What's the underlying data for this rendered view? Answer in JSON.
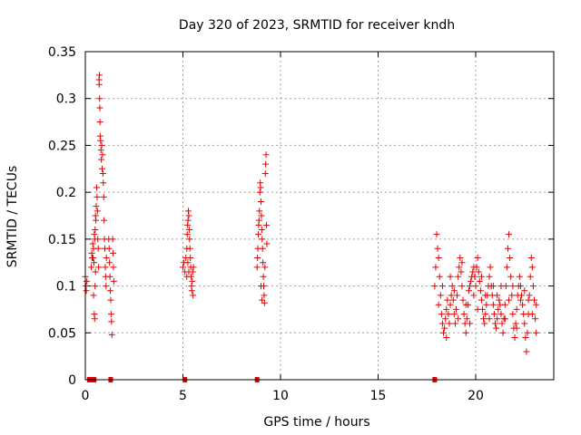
{
  "colors": {
    "series": "#e60000",
    "axis": "#000000",
    "grid": "#a0a0a0",
    "background": "#ffffff"
  },
  "chart_data": {
    "type": "scatter",
    "title": "Day 320 of 2023, SRMTID for receiver kndh",
    "xlabel": "GPS time / hours",
    "ylabel": "SRMTID / TECUs",
    "xlim": [
      0,
      24
    ],
    "ylim": [
      0,
      0.35
    ],
    "grid": true,
    "marker": "plus",
    "xticks": [
      0,
      5,
      10,
      15,
      20
    ],
    "xtick_labels": [
      "0",
      "5",
      "10",
      "15",
      "20"
    ],
    "yticks": [
      0,
      0.05,
      0.1,
      0.15,
      0.2,
      0.25,
      0.3,
      0.35
    ],
    "ytick_labels": [
      "0",
      "0.05",
      "0.1",
      "0.15",
      "0.2",
      "0.25",
      "0.3",
      "0.35"
    ],
    "series": [
      {
        "name": "SRMTID",
        "points": [
          [
            0.0,
            0.11
          ],
          [
            0.03,
            0.1
          ],
          [
            0.05,
            0.095
          ],
          [
            0.08,
            0.105
          ],
          [
            0.3,
            0.12
          ],
          [
            0.33,
            0.135
          ],
          [
            0.35,
            0.13
          ],
          [
            0.38,
            0.145
          ],
          [
            0.4,
            0.13
          ],
          [
            0.42,
            0.14
          ],
          [
            0.44,
            0.125
          ],
          [
            0.46,
            0.155
          ],
          [
            0.48,
            0.15
          ],
          [
            0.5,
            0.16
          ],
          [
            0.52,
            0.175
          ],
          [
            0.54,
            0.17
          ],
          [
            0.56,
            0.185
          ],
          [
            0.58,
            0.205
          ],
          [
            0.6,
            0.195
          ],
          [
            0.62,
            0.18
          ],
          [
            0.64,
            0.15
          ],
          [
            0.66,
            0.14
          ],
          [
            0.68,
            0.12
          ],
          [
            0.42,
            0.09
          ],
          [
            0.46,
            0.07
          ],
          [
            0.48,
            0.065
          ],
          [
            0.5,
            0.1
          ],
          [
            0.52,
            0.115
          ],
          [
            0.7,
            0.32
          ],
          [
            0.71,
            0.315
          ],
          [
            0.72,
            0.325
          ],
          [
            0.73,
            0.3
          ],
          [
            0.74,
            0.29
          ],
          [
            0.75,
            0.275
          ],
          [
            0.76,
            0.26
          ],
          [
            0.78,
            0.255
          ],
          [
            0.8,
            0.245
          ],
          [
            0.82,
            0.235
          ],
          [
            0.84,
            0.25
          ],
          [
            0.86,
            0.225
          ],
          [
            0.88,
            0.24
          ],
          [
            0.9,
            0.22
          ],
          [
            0.92,
            0.21
          ],
          [
            0.94,
            0.195
          ],
          [
            0.96,
            0.17
          ],
          [
            0.98,
            0.15
          ],
          [
            1.0,
            0.14
          ],
          [
            1.02,
            0.12
          ],
          [
            1.04,
            0.11
          ],
          [
            1.06,
            0.1
          ],
          [
            1.08,
            0.13
          ],
          [
            1.2,
            0.15
          ],
          [
            1.22,
            0.14
          ],
          [
            1.24,
            0.125
          ],
          [
            1.26,
            0.11
          ],
          [
            1.28,
            0.095
          ],
          [
            1.3,
            0.085
          ],
          [
            1.32,
            0.07
          ],
          [
            1.34,
            0.062
          ],
          [
            1.36,
            0.048
          ],
          [
            1.4,
            0.15
          ],
          [
            1.42,
            0.135
          ],
          [
            1.44,
            0.12
          ],
          [
            1.46,
            0.105
          ],
          [
            5.0,
            0.12
          ],
          [
            5.05,
            0.125
          ],
          [
            5.1,
            0.115
          ],
          [
            5.15,
            0.13
          ],
          [
            5.2,
            0.14
          ],
          [
            5.22,
            0.155
          ],
          [
            5.24,
            0.165
          ],
          [
            5.26,
            0.17
          ],
          [
            5.28,
            0.18
          ],
          [
            5.3,
            0.175
          ],
          [
            5.32,
            0.16
          ],
          [
            5.34,
            0.15
          ],
          [
            5.36,
            0.14
          ],
          [
            5.38,
            0.13
          ],
          [
            5.4,
            0.12
          ],
          [
            5.42,
            0.11
          ],
          [
            5.44,
            0.1
          ],
          [
            5.46,
            0.095
          ],
          [
            5.48,
            0.105
          ],
          [
            5.5,
            0.115
          ],
          [
            5.52,
            0.09
          ],
          [
            5.54,
            0.12
          ],
          [
            5.2,
            0.11
          ],
          [
            5.25,
            0.125
          ],
          [
            5.3,
            0.115
          ],
          [
            8.8,
            0.12
          ],
          [
            8.82,
            0.13
          ],
          [
            8.84,
            0.14
          ],
          [
            8.86,
            0.155
          ],
          [
            8.88,
            0.165
          ],
          [
            8.9,
            0.17
          ],
          [
            8.92,
            0.18
          ],
          [
            8.94,
            0.2
          ],
          [
            8.96,
            0.21
          ],
          [
            8.98,
            0.205
          ],
          [
            9.0,
            0.19
          ],
          [
            9.02,
            0.175
          ],
          [
            9.04,
            0.16
          ],
          [
            9.06,
            0.15
          ],
          [
            9.08,
            0.14
          ],
          [
            9.1,
            0.125
          ],
          [
            9.12,
            0.11
          ],
          [
            9.14,
            0.1
          ],
          [
            9.16,
            0.09
          ],
          [
            9.18,
            0.082
          ],
          [
            9.2,
            0.12
          ],
          [
            9.22,
            0.22
          ],
          [
            9.24,
            0.23
          ],
          [
            9.26,
            0.24
          ],
          [
            9.28,
            0.165
          ],
          [
            9.3,
            0.145
          ],
          [
            9.0,
            0.1
          ],
          [
            9.05,
            0.085
          ],
          [
            17.9,
            0.1
          ],
          [
            17.95,
            0.12
          ],
          [
            18.0,
            0.155
          ],
          [
            18.05,
            0.14
          ],
          [
            18.1,
            0.13
          ],
          [
            18.15,
            0.11
          ],
          [
            18.2,
            0.09
          ],
          [
            18.25,
            0.07
          ],
          [
            18.3,
            0.06
          ],
          [
            18.35,
            0.05
          ],
          [
            18.4,
            0.055
          ],
          [
            18.45,
            0.065
          ],
          [
            18.5,
            0.075
          ],
          [
            18.55,
            0.085
          ],
          [
            18.6,
            0.07
          ],
          [
            18.65,
            0.06
          ],
          [
            18.7,
            0.08
          ],
          [
            18.75,
            0.09
          ],
          [
            18.8,
            0.1
          ],
          [
            18.85,
            0.085
          ],
          [
            18.9,
            0.07
          ],
          [
            18.95,
            0.06
          ],
          [
            19.0,
            0.075
          ],
          [
            19.05,
            0.09
          ],
          [
            19.1,
            0.11
          ],
          [
            19.15,
            0.12
          ],
          [
            19.2,
            0.13
          ],
          [
            19.25,
            0.115
          ],
          [
            19.3,
            0.1
          ],
          [
            19.35,
            0.085
          ],
          [
            19.4,
            0.07
          ],
          [
            19.45,
            0.06
          ],
          [
            19.5,
            0.05
          ],
          [
            19.55,
            0.065
          ],
          [
            19.6,
            0.08
          ],
          [
            19.65,
            0.095
          ],
          [
            19.7,
            0.1
          ],
          [
            19.75,
            0.105
          ],
          [
            19.8,
            0.11
          ],
          [
            19.85,
            0.115
          ],
          [
            19.9,
            0.12
          ],
          [
            19.95,
            0.11
          ],
          [
            20.0,
            0.1
          ],
          [
            20.05,
            0.12
          ],
          [
            20.1,
            0.13
          ],
          [
            20.15,
            0.115
          ],
          [
            20.2,
            0.105
          ],
          [
            20.25,
            0.095
          ],
          [
            20.3,
            0.085
          ],
          [
            20.35,
            0.075
          ],
          [
            20.4,
            0.065
          ],
          [
            20.45,
            0.06
          ],
          [
            20.5,
            0.07
          ],
          [
            20.55,
            0.08
          ],
          [
            20.6,
            0.09
          ],
          [
            20.65,
            0.1
          ],
          [
            20.7,
            0.11
          ],
          [
            20.75,
            0.12
          ],
          [
            20.8,
            0.1
          ],
          [
            20.85,
            0.09
          ],
          [
            20.9,
            0.08
          ],
          [
            20.95,
            0.07
          ],
          [
            21.0,
            0.06
          ],
          [
            21.05,
            0.055
          ],
          [
            21.1,
            0.065
          ],
          [
            21.15,
            0.075
          ],
          [
            21.2,
            0.085
          ],
          [
            21.25,
            0.08
          ],
          [
            21.3,
            0.07
          ],
          [
            21.35,
            0.06
          ],
          [
            21.4,
            0.05
          ],
          [
            21.45,
            0.065
          ],
          [
            21.5,
            0.08
          ],
          [
            21.55,
            0.1
          ],
          [
            21.6,
            0.12
          ],
          [
            21.65,
            0.14
          ],
          [
            21.7,
            0.155
          ],
          [
            21.75,
            0.13
          ],
          [
            21.8,
            0.11
          ],
          [
            21.85,
            0.09
          ],
          [
            21.9,
            0.07
          ],
          [
            21.95,
            0.055
          ],
          [
            22.0,
            0.045
          ],
          [
            22.05,
            0.06
          ],
          [
            22.1,
            0.075
          ],
          [
            22.15,
            0.09
          ],
          [
            22.2,
            0.1
          ],
          [
            22.25,
            0.11
          ],
          [
            22.3,
            0.1
          ],
          [
            22.35,
            0.09
          ],
          [
            22.4,
            0.08
          ],
          [
            22.45,
            0.07
          ],
          [
            22.5,
            0.06
          ],
          [
            22.55,
            0.045
          ],
          [
            22.6,
            0.03
          ],
          [
            22.65,
            0.05
          ],
          [
            22.7,
            0.07
          ],
          [
            22.75,
            0.09
          ],
          [
            22.8,
            0.11
          ],
          [
            22.85,
            0.13
          ],
          [
            22.9,
            0.12
          ],
          [
            22.95,
            0.1
          ],
          [
            23.0,
            0.085
          ],
          [
            23.05,
            0.065
          ],
          [
            23.1,
            0.05
          ],
          [
            18.1,
            0.08
          ],
          [
            18.3,
            0.1
          ],
          [
            18.5,
            0.045
          ],
          [
            18.7,
            0.11
          ],
          [
            18.9,
            0.095
          ],
          [
            19.1,
            0.065
          ],
          [
            19.3,
            0.125
          ],
          [
            19.5,
            0.08
          ],
          [
            19.7,
            0.06
          ],
          [
            19.9,
            0.09
          ],
          [
            20.1,
            0.075
          ],
          [
            20.3,
            0.11
          ],
          [
            20.5,
            0.09
          ],
          [
            20.7,
            0.065
          ],
          [
            20.9,
            0.1
          ],
          [
            21.1,
            0.09
          ],
          [
            21.3,
            0.1
          ],
          [
            21.5,
            0.065
          ],
          [
            21.7,
            0.085
          ],
          [
            21.9,
            0.1
          ],
          [
            22.1,
            0.055
          ],
          [
            22.3,
            0.085
          ],
          [
            22.5,
            0.095
          ],
          [
            22.7,
            0.085
          ],
          [
            22.9,
            0.07
          ],
          [
            23.1,
            0.08
          ]
        ]
      }
    ],
    "zero_markers": [
      0.2,
      0.3,
      0.45,
      1.3,
      5.1,
      8.8,
      17.9
    ]
  }
}
